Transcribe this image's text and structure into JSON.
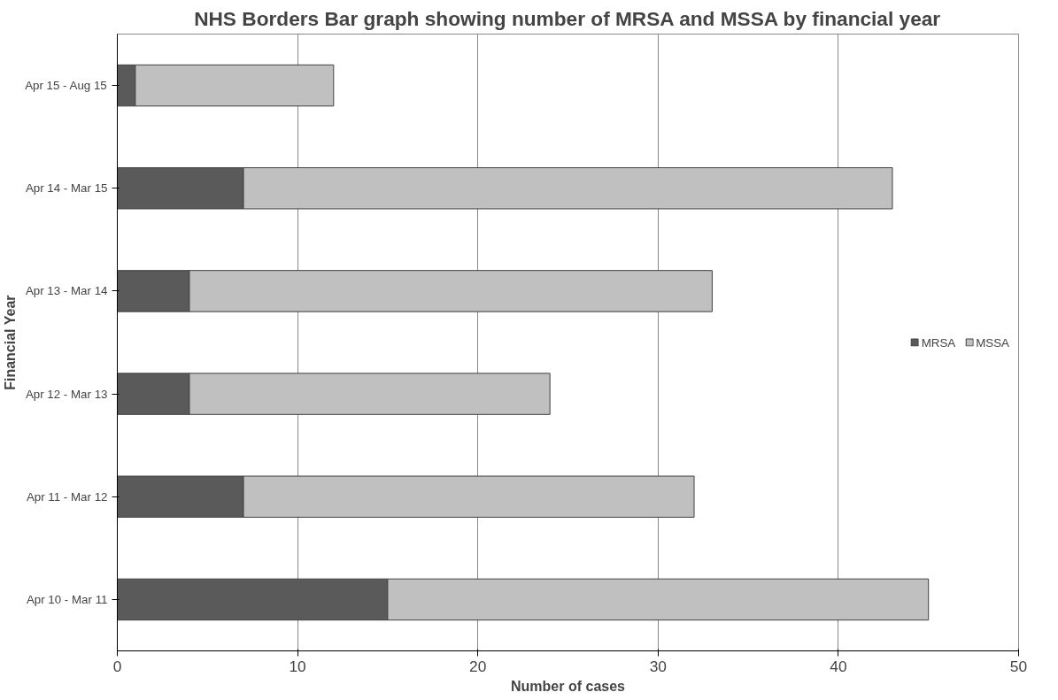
{
  "chart_data": {
    "type": "bar",
    "orientation": "horizontal",
    "stacked": true,
    "title": "NHS Borders Bar graph showing number of MRSA and MSSA by financial year",
    "xlabel": "Number of cases",
    "ylabel": "Financial Year",
    "categories": [
      "Apr 15 - Aug 15",
      "Apr 14 - Mar 15",
      "Apr 13 - Mar 14",
      "Apr 12 - Mar 13",
      "Apr 11 - Mar 12",
      "Apr 10 - Mar 11"
    ],
    "series": [
      {
        "name": "MRSA",
        "color": "#5a5a5a",
        "values": [
          1,
          7,
          4,
          4,
          7,
          15
        ]
      },
      {
        "name": "MSSA",
        "color": "#c0c0c0",
        "values": [
          11,
          36,
          29,
          20,
          25,
          30
        ]
      }
    ],
    "xlim": [
      0,
      50
    ],
    "xticks": [
      0,
      10,
      20,
      30,
      40,
      50
    ],
    "grid": "x",
    "legend": "right"
  }
}
